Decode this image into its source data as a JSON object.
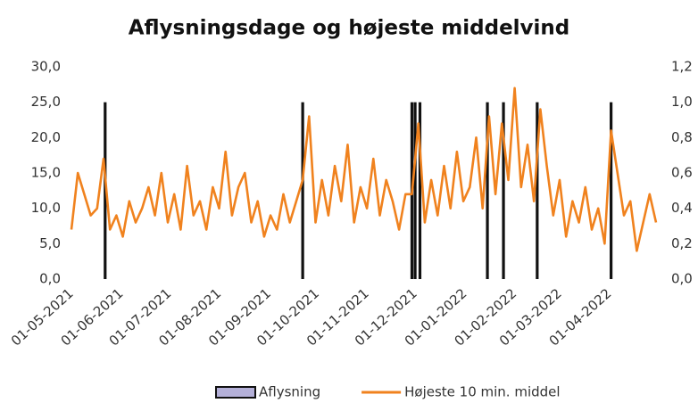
{
  "chart_data": {
    "type": "line",
    "title": "Aflysningsdage og højeste middelvind",
    "xlim": [
      "01-05-2021",
      "30-04-2022"
    ],
    "xticks": [
      "01-05-2021",
      "01-06-2021",
      "01-07-2021",
      "01-08-2021",
      "01-09-2021",
      "01-10-2021",
      "01-11-2021",
      "01-12-2021",
      "01-01-2022",
      "01-02-2022",
      "01-03-2022",
      "01-04-2022"
    ],
    "ylim": [
      0,
      30
    ],
    "yticks": [
      {
        "value": 0,
        "label": "0,0"
      },
      {
        "value": 5,
        "label": "5,0"
      },
      {
        "value": 10,
        "label": "10,0"
      },
      {
        "value": 15,
        "label": "15,0"
      },
      {
        "value": 20,
        "label": "20,0"
      },
      {
        "value": 25,
        "label": "25,0"
      },
      {
        "value": 30,
        "label": "30,0"
      }
    ],
    "y2lim": [
      0,
      1.2
    ],
    "y2ticks": [
      {
        "value": 0,
        "label": "0,0"
      },
      {
        "value": 0.2,
        "label": "0,2"
      },
      {
        "value": 0.4,
        "label": "0,4"
      },
      {
        "value": 0.6,
        "label": "0,6"
      },
      {
        "value": 0.8,
        "label": "0,8"
      },
      {
        "value": 1,
        "label": "1,0"
      },
      {
        "value": 1.2,
        "label": "1,2"
      }
    ],
    "legend": "bottom",
    "series": [
      {
        "name": "Aflysning",
        "type": "bar",
        "axis": "y2",
        "color": "#111111",
        "legend_color": "#b4b0d8",
        "x": [
          "22-05-2021",
          "22-09-2021",
          "29-11-2021",
          "01-12-2021",
          "04-12-2021",
          "15-01-2022",
          "25-01-2022",
          "15-02-2022",
          "02-04-2022"
        ],
        "values": [
          1,
          1,
          1,
          1,
          1,
          1,
          1,
          1,
          1
        ]
      },
      {
        "name": "Højeste 10 min. middel",
        "type": "line",
        "color": "#f0821e",
        "x": [
          "01-05-2021",
          "05-05-2021",
          "09-05-2021",
          "13-05-2021",
          "17-05-2021",
          "21-05-2021",
          "25-05-2021",
          "29-05-2021",
          "02-06-2021",
          "06-06-2021",
          "10-06-2021",
          "14-06-2021",
          "18-06-2021",
          "22-06-2021",
          "26-06-2021",
          "30-06-2021",
          "04-07-2021",
          "08-07-2021",
          "12-07-2021",
          "16-07-2021",
          "20-07-2021",
          "24-07-2021",
          "28-07-2021",
          "01-08-2021",
          "05-08-2021",
          "09-08-2021",
          "13-08-2021",
          "17-08-2021",
          "21-08-2021",
          "25-08-2021",
          "29-08-2021",
          "02-09-2021",
          "06-09-2021",
          "10-09-2021",
          "14-09-2021",
          "18-09-2021",
          "22-09-2021",
          "26-09-2021",
          "30-09-2021",
          "04-10-2021",
          "08-10-2021",
          "12-10-2021",
          "16-10-2021",
          "20-10-2021",
          "24-10-2021",
          "28-10-2021",
          "01-11-2021",
          "05-11-2021",
          "09-11-2021",
          "13-11-2021",
          "17-11-2021",
          "21-11-2021",
          "25-11-2021",
          "29-11-2021",
          "03-12-2021",
          "07-12-2021",
          "11-12-2021",
          "15-12-2021",
          "19-12-2021",
          "23-12-2021",
          "27-12-2021",
          "31-12-2021",
          "04-01-2022",
          "08-01-2022",
          "12-01-2022",
          "16-01-2022",
          "20-01-2022",
          "24-01-2022",
          "28-01-2022",
          "01-02-2022",
          "05-02-2022",
          "09-02-2022",
          "13-02-2022",
          "17-02-2022",
          "21-02-2022",
          "25-02-2022",
          "01-03-2022",
          "05-03-2022",
          "09-03-2022",
          "13-03-2022",
          "17-03-2022",
          "21-03-2022",
          "25-03-2022",
          "29-03-2022",
          "02-04-2022",
          "06-04-2022",
          "10-04-2022",
          "14-04-2022",
          "18-04-2022",
          "22-04-2022",
          "26-04-2022",
          "30-04-2022"
        ],
        "values": [
          7,
          15,
          12,
          9,
          10,
          17,
          7,
          9,
          6,
          11,
          8,
          10,
          13,
          9,
          15,
          8,
          12,
          7,
          16,
          9,
          11,
          7,
          13,
          10,
          18,
          9,
          13,
          15,
          8,
          11,
          6,
          9,
          7,
          12,
          8,
          11,
          14,
          23,
          8,
          14,
          9,
          16,
          11,
          19,
          8,
          13,
          10,
          17,
          9,
          14,
          11,
          7,
          12,
          12,
          22,
          8,
          14,
          9,
          16,
          10,
          18,
          11,
          13,
          20,
          10,
          23,
          12,
          22,
          14,
          27,
          13,
          19,
          11,
          24,
          16,
          9,
          14,
          6,
          11,
          8,
          13,
          7,
          10,
          5,
          21,
          15,
          9,
          11,
          4,
          8,
          12,
          8
        ]
      }
    ]
  }
}
